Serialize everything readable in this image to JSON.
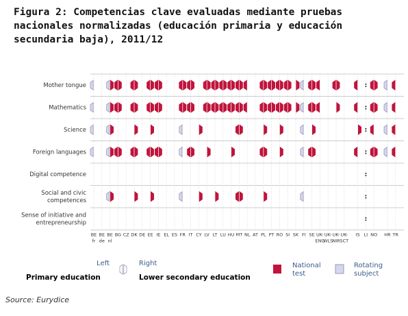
{
  "title_lines": [
    "Figura 2: Competencias clave evaluadas mediante pruebas",
    "nacionales normalizadas (educación primaria y educación",
    "secundaria baja), 2011/12"
  ],
  "columns": [
    [
      "BE",
      "fr"
    ],
    [
      "BE",
      "de"
    ],
    [
      "BE",
      "nl"
    ],
    [
      "BG"
    ],
    [
      "CZ"
    ],
    [
      "DK"
    ],
    [
      "DE"
    ],
    [
      "EE"
    ],
    [
      "IE"
    ],
    [
      "EL"
    ],
    [
      "ES"
    ],
    [
      "FR"
    ],
    [
      "IT"
    ],
    [
      "CY"
    ],
    [
      "LV"
    ],
    [
      "LT"
    ],
    [
      "LU"
    ],
    [
      "HU"
    ],
    [
      "MT"
    ],
    [
      "NL"
    ],
    [
      "AT"
    ],
    [
      "PL"
    ],
    [
      "PT"
    ],
    [
      "RO"
    ],
    [
      "SI"
    ],
    [
      "SK"
    ],
    [
      "FI"
    ],
    [
      "SE"
    ],
    [
      "UK-",
      "ENG"
    ],
    [
      "UK-",
      "WLS"
    ],
    [
      "UK-",
      "NIR"
    ],
    [
      "UK-",
      "SCT"
    ],
    [
      "IS"
    ],
    [
      "LI"
    ],
    [
      "NO"
    ],
    [
      "HR"
    ],
    [
      "TR"
    ]
  ],
  "rows": [
    {
      "label": [
        "Mother tongue"
      ],
      "cells": [
        "R.",
        "..",
        "RN",
        "NN",
        "..",
        "NN",
        "..",
        "NN",
        "NN",
        "..",
        "..",
        "NN",
        "NN",
        "..",
        "NN",
        "NN",
        "NN",
        "NN",
        "NN",
        "N.",
        "..",
        "NN",
        "NN",
        "NN",
        "NN",
        ".N",
        "R.",
        "NN",
        "N.",
        "..",
        "NN",
        "..",
        "N.",
        ":",
        "NN",
        "R.",
        "N."
      ]
    },
    {
      "label": [
        "Mathematics"
      ],
      "cells": [
        "R.",
        "..",
        "RN",
        "NN",
        "..",
        "NN",
        "..",
        "NN",
        "NN",
        "..",
        "..",
        "NN",
        "NN",
        "..",
        "NN",
        "NN",
        "NN",
        "NN",
        "NN",
        "N.",
        "..",
        "NN",
        "NN",
        "NN",
        "NN",
        ".N",
        "R.",
        "NN",
        "N.",
        "..",
        ".N",
        "..",
        "N.",
        ":",
        "NN",
        "R.",
        "N."
      ]
    },
    {
      "label": [
        "Science"
      ],
      "cells": [
        "R.",
        "..",
        "RN",
        "..",
        "..",
        ".N",
        "..",
        ".N",
        "..",
        "..",
        "..",
        "R.",
        "..",
        ".N",
        "..",
        "..",
        "..",
        "..",
        "NN",
        "..",
        "..",
        ".N",
        "..",
        ".N",
        "..",
        "..",
        "R.",
        ".N",
        "..",
        "..",
        "..",
        "..",
        ".N",
        ":",
        "N.",
        "R.",
        "N."
      ]
    },
    {
      "label": [
        "Foreign languages"
      ],
      "cells": [
        "R.",
        "..",
        "RN",
        "NN",
        "..",
        "NN",
        "..",
        "NN",
        "NN",
        "..",
        "..",
        "R.",
        "NN",
        "..",
        ".N",
        "..",
        "..",
        ".N",
        "..",
        "..",
        "..",
        "NN",
        "..",
        ".N",
        "..",
        "..",
        "R.",
        "NN",
        "..",
        "..",
        "..",
        "..",
        "N.",
        ":",
        "NN",
        "R.",
        "N."
      ]
    },
    {
      "label": [
        "Digital competence"
      ],
      "cells": [
        "..",
        "..",
        "..",
        "..",
        "..",
        "..",
        "..",
        "..",
        "..",
        "..",
        "..",
        "..",
        "..",
        "..",
        "..",
        "..",
        "..",
        "..",
        "..",
        "..",
        "..",
        "..",
        "..",
        "..",
        "..",
        "..",
        "..",
        "..",
        "..",
        "..",
        "..",
        "..",
        "..",
        ":",
        "..",
        "..",
        ".."
      ]
    },
    {
      "label": [
        "Social and civic",
        "competences"
      ],
      "cells": [
        "..",
        "..",
        "RN",
        "..",
        "..",
        ".N",
        "..",
        ".N",
        "..",
        "..",
        "..",
        "R.",
        "..",
        ".N",
        "..",
        ".N",
        "..",
        "..",
        "NN",
        "..",
        "..",
        ".N",
        "..",
        "..",
        "..",
        "..",
        "R.",
        "..",
        "..",
        "..",
        "..",
        "..",
        "..",
        ":",
        "..",
        "..",
        ".."
      ]
    },
    {
      "label": [
        "Sense of initiative and",
        "entrepreneurship"
      ],
      "cells": [
        "..",
        "..",
        "..",
        "..",
        "..",
        "..",
        "..",
        "..",
        "..",
        "..",
        "..",
        "..",
        "..",
        "..",
        "..",
        "..",
        "..",
        "..",
        "..",
        "..",
        "..",
        "..",
        "..",
        "..",
        "..",
        "..",
        "..",
        "..",
        "..",
        "..",
        "..",
        "..",
        "..",
        ":",
        "..",
        "..",
        ".."
      ]
    }
  ],
  "legend": {
    "left": "Left",
    "right": "Right",
    "primary": "Primary education",
    "lower_secondary": "Lower secondary education",
    "national": [
      "National",
      "test"
    ],
    "rotating": [
      "Rotating",
      "subject"
    ]
  },
  "source": "Source: Eurydice"
}
